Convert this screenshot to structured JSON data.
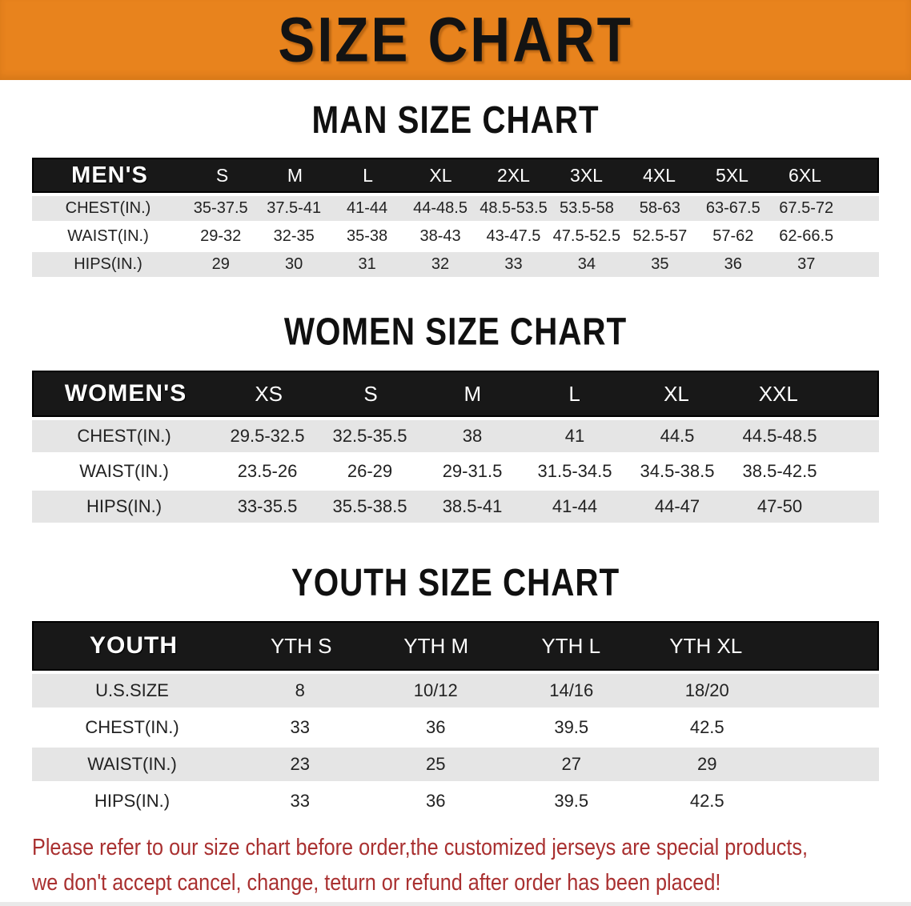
{
  "banner": {
    "title": "SIZE CHART",
    "bg_color": "#e8831d",
    "text_color": "#131313"
  },
  "sections": [
    {
      "id": "men",
      "title": "MAN SIZE CHART",
      "label": "MEN'S",
      "columns": [
        "S",
        "M",
        "L",
        "XL",
        "2XL",
        "3XL",
        "4XL",
        "5XL",
        "6XL"
      ],
      "rows": [
        {
          "label": "CHEST(IN.)",
          "values": [
            "35-37.5",
            "37.5-41",
            "41-44",
            "44-48.5",
            "48.5-53.5",
            "53.5-58",
            "58-63",
            "63-67.5",
            "67.5-72"
          ]
        },
        {
          "label": "WAIST(IN.)",
          "values": [
            "29-32",
            "32-35",
            "35-38",
            "38-43",
            "43-47.5",
            "47.5-52.5",
            "52.5-57",
            "57-62",
            "62-66.5"
          ]
        },
        {
          "label": "HIPS(IN.)",
          "values": [
            "29",
            "30",
            "31",
            "32",
            "33",
            "34",
            "35",
            "36",
            "37"
          ]
        }
      ]
    },
    {
      "id": "women",
      "title": "WOMEN SIZE CHART",
      "label": "WOMEN'S",
      "columns": [
        "XS",
        "S",
        "M",
        "L",
        "XL",
        "XXL"
      ],
      "rows": [
        {
          "label": "CHEST(IN.)",
          "values": [
            "29.5-32.5",
            "32.5-35.5",
            "38",
            "41",
            "44.5",
            "44.5-48.5"
          ]
        },
        {
          "label": "WAIST(IN.)",
          "values": [
            "23.5-26",
            "26-29",
            "29-31.5",
            "31.5-34.5",
            "34.5-38.5",
            "38.5-42.5"
          ]
        },
        {
          "label": "HIPS(IN.)",
          "values": [
            "33-35.5",
            "35.5-38.5",
            "38.5-41",
            "41-44",
            "44-47",
            "47-50"
          ]
        }
      ]
    },
    {
      "id": "youth",
      "title": "YOUTH SIZE CHART",
      "label": "YOUTH",
      "columns": [
        "YTH S",
        "YTH M",
        "YTH L",
        "YTH XL"
      ],
      "rows": [
        {
          "label": "U.S.SIZE",
          "values": [
            "8",
            "10/12",
            "14/16",
            "18/20"
          ]
        },
        {
          "label": "CHEST(IN.)",
          "values": [
            "33",
            "36",
            "39.5",
            "42.5"
          ]
        },
        {
          "label": "WAIST(IN.)",
          "values": [
            "23",
            "25",
            "27",
            "29"
          ]
        },
        {
          "label": "HIPS(IN.)",
          "values": [
            "33",
            "36",
            "39.5",
            "42.5"
          ]
        }
      ]
    }
  ],
  "table_colors": {
    "header_bg": "#181818",
    "header_text": "#ffffff",
    "row_alt_bg": "#e5e5e5",
    "row_bg": "#ffffff",
    "cell_text": "#222222"
  },
  "disclaimer": {
    "line1": "Please refer to our size chart before order,the customized jerseys are special products,",
    "line2": "we don't accept cancel, change, teturn or refund after order has been placed!",
    "color": "#a93030"
  }
}
